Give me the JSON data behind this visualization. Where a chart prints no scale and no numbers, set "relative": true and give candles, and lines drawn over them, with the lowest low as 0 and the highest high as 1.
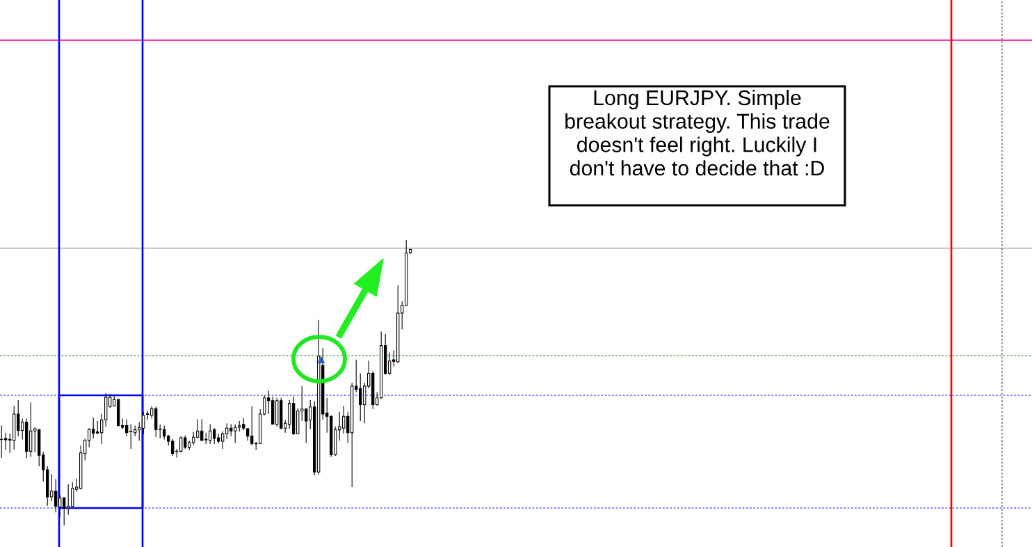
{
  "chart_data": {
    "type": "candlestick",
    "relative": true,
    "tick_labels": false,
    "categories": [
      null,
      null,
      null,
      null,
      null,
      null,
      null,
      null,
      null,
      null,
      null,
      null,
      null,
      null,
      null,
      null,
      null,
      null,
      null,
      null,
      null,
      null,
      null,
      null,
      null,
      null,
      null,
      null,
      null,
      null,
      null,
      null,
      null,
      null,
      null,
      null,
      null,
      null,
      null,
      null,
      null,
      null,
      null,
      null,
      null,
      null,
      null,
      null,
      null,
      null,
      null,
      null,
      null,
      null,
      null,
      null,
      null,
      null,
      null,
      null,
      null,
      null,
      null,
      null,
      null,
      null,
      null,
      null,
      null,
      null,
      null,
      null,
      null,
      null,
      null,
      null,
      null,
      null,
      null,
      null,
      null,
      null,
      null,
      null,
      null,
      null,
      null,
      null,
      null,
      null,
      null,
      null,
      null,
      null,
      null,
      null,
      null,
      null,
      null
    ],
    "ohlc": [
      [
        0.302,
        0.35,
        0.236,
        0.301
      ],
      [
        0.305,
        0.325,
        0.264,
        0.3
      ],
      [
        0.302,
        0.321,
        0.254,
        0.299
      ],
      [
        0.298,
        0.419,
        0.266,
        0.39
      ],
      [
        0.39,
        0.439,
        0.313,
        0.333
      ],
      [
        0.333,
        0.374,
        0.301,
        0.362
      ],
      [
        0.362,
        0.374,
        0.236,
        0.26
      ],
      [
        0.26,
        0.431,
        0.24,
        0.331
      ],
      [
        0.331,
        0.343,
        0.256,
        0.339
      ],
      [
        0.336,
        0.337,
        0.207,
        0.246
      ],
      [
        0.246,
        0.258,
        0.154,
        0.195
      ],
      [
        0.195,
        0.207,
        0.069,
        0.1
      ],
      [
        0.1,
        0.179,
        0.085,
        0.12
      ],
      [
        0.12,
        0.163,
        0.046,
        0.067
      ],
      [
        0.065,
        0.106,
        0.028,
        0.096
      ],
      [
        0.096,
        0.1,
        0.0,
        0.061
      ],
      [
        0.061,
        0.144,
        0.037,
        0.067
      ],
      [
        0.067,
        0.152,
        0.065,
        0.13
      ],
      [
        0.126,
        0.164,
        0.118,
        0.134
      ],
      [
        0.13,
        0.28,
        0.126,
        0.254
      ],
      [
        0.252,
        0.305,
        0.228,
        0.298
      ],
      [
        0.298,
        0.341,
        0.274,
        0.336
      ],
      [
        0.337,
        0.378,
        0.305,
        0.323
      ],
      [
        0.328,
        0.366,
        0.321,
        0.323
      ],
      [
        0.325,
        0.39,
        0.285,
        0.37
      ],
      [
        0.37,
        0.463,
        0.346,
        0.449
      ],
      [
        0.417,
        0.461,
        0.412,
        0.449
      ],
      [
        0.419,
        0.459,
        0.417,
        0.441
      ],
      [
        0.441,
        0.443,
        0.347,
        0.35
      ],
      [
        0.35,
        0.374,
        0.337,
        0.344
      ],
      [
        0.35,
        0.372,
        0.313,
        0.325
      ],
      [
        0.329,
        0.354,
        0.268,
        0.328
      ],
      [
        0.325,
        0.35,
        0.313,
        0.335
      ],
      [
        0.336,
        0.362,
        0.297,
        0.343
      ],
      [
        0.341,
        0.398,
        0.32,
        0.386
      ],
      [
        0.389,
        0.402,
        0.37,
        0.392
      ],
      [
        0.386,
        0.419,
        0.374,
        0.409
      ],
      [
        0.409,
        0.417,
        0.309,
        0.336
      ],
      [
        0.337,
        0.354,
        0.305,
        0.336
      ],
      [
        0.336,
        0.35,
        0.301,
        0.313
      ],
      [
        0.313,
        0.317,
        0.28,
        0.295
      ],
      [
        0.295,
        0.303,
        0.244,
        0.252
      ],
      [
        0.26,
        0.268,
        0.238,
        0.259
      ],
      [
        0.26,
        0.313,
        0.256,
        0.307
      ],
      [
        0.307,
        0.315,
        0.268,
        0.274
      ],
      [
        0.274,
        0.297,
        0.264,
        0.29
      ],
      [
        0.29,
        0.328,
        0.282,
        0.309
      ],
      [
        0.309,
        0.372,
        0.305,
        0.331
      ],
      [
        0.331,
        0.372,
        0.295,
        0.298
      ],
      [
        0.302,
        0.325,
        0.285,
        0.3
      ],
      [
        0.298,
        0.355,
        0.285,
        0.331
      ],
      [
        0.335,
        0.341,
        0.285,
        0.305
      ],
      [
        0.307,
        0.321,
        0.287,
        0.295
      ],
      [
        0.295,
        0.329,
        0.268,
        0.321
      ],
      [
        0.321,
        0.358,
        0.303,
        0.341
      ],
      [
        0.341,
        0.355,
        0.313,
        0.331
      ],
      [
        0.331,
        0.354,
        0.289,
        0.343
      ],
      [
        0.344,
        0.366,
        0.329,
        0.349
      ],
      [
        0.354,
        0.376,
        0.333,
        0.341
      ],
      [
        0.339,
        0.341,
        0.297,
        0.313
      ],
      [
        0.313,
        0.417,
        0.28,
        0.287
      ],
      [
        0.287,
        0.293,
        0.264,
        0.286
      ],
      [
        0.287,
        0.407,
        0.285,
        0.39
      ],
      [
        0.39,
        0.455,
        0.386,
        0.447
      ],
      [
        0.447,
        0.472,
        0.39,
        0.437
      ],
      [
        0.437,
        0.451,
        0.354,
        0.355
      ],
      [
        0.354,
        0.447,
        0.346,
        0.437
      ],
      [
        0.437,
        0.447,
        0.337,
        0.341
      ],
      [
        0.341,
        0.37,
        0.325,
        0.358
      ],
      [
        0.354,
        0.439,
        0.339,
        0.427
      ],
      [
        0.427,
        0.451,
        0.317,
        0.321
      ],
      [
        0.321,
        0.411,
        0.32,
        0.401
      ],
      [
        0.401,
        0.488,
        0.366,
        0.408
      ],
      [
        0.408,
        0.411,
        0.289,
        0.366
      ],
      [
        0.37,
        0.439,
        0.337,
        0.415
      ],
      [
        0.415,
        0.435,
        0.175,
        0.187
      ],
      [
        0.187,
        0.72,
        0.179,
        0.593
      ],
      [
        0.561,
        0.622,
        0.37,
        0.39
      ],
      [
        0.394,
        0.447,
        0.325,
        0.382
      ],
      [
        0.382,
        0.386,
        0.24,
        0.248
      ],
      [
        0.248,
        0.346,
        0.244,
        0.336
      ],
      [
        0.335,
        0.398,
        0.297,
        0.346
      ],
      [
        0.341,
        0.419,
        0.321,
        0.382
      ],
      [
        0.382,
        0.398,
        0.289,
        0.325
      ],
      [
        0.325,
        0.5,
        0.134,
        0.488
      ],
      [
        0.488,
        0.581,
        0.467,
        0.477
      ],
      [
        0.48,
        0.533,
        0.366,
        0.423
      ],
      [
        0.423,
        0.5,
        0.358,
        0.488
      ],
      [
        0.488,
        0.577,
        0.48,
        0.533
      ],
      [
        0.533,
        0.541,
        0.407,
        0.423
      ],
      [
        0.423,
        0.467,
        0.419,
        0.447
      ],
      [
        0.447,
        0.679,
        0.443,
        0.63
      ],
      [
        0.63,
        0.671,
        0.528,
        0.533
      ],
      [
        0.533,
        0.606,
        0.528,
        0.576
      ],
      [
        0.58,
        0.614,
        0.557,
        0.575
      ],
      [
        0.573,
        0.841,
        0.569,
        0.744
      ],
      [
        0.744,
        0.785,
        0.687,
        0.772
      ],
      [
        0.772,
        1.0,
        0.768,
        0.955
      ],
      [
        0.955,
        0.969,
        0.951,
        0.967
      ]
    ],
    "ref_lines": [
      {
        "axis": "y",
        "value": 1.7,
        "color": "#ff1493",
        "line_style": "solid"
      },
      {
        "axis": "y",
        "value": 0.971,
        "color": "#c0c0c0",
        "line_style": "solid"
      },
      {
        "axis": "y",
        "value": 0.595,
        "color": "#008000",
        "line_style": "dashed"
      },
      {
        "axis": "y",
        "value": 0.456,
        "color": "#0000ff",
        "line_style": "dashed"
      },
      {
        "axis": "y",
        "value": 0.061,
        "color": "#0000ff",
        "line_style": "dashed"
      }
    ],
    "annotations": [
      "Long EURJPY. Simple\nbreakout strategy. This trade\ndoesn't feel right. Luckily I\ndon't have to decide that :D"
    ]
  }
}
